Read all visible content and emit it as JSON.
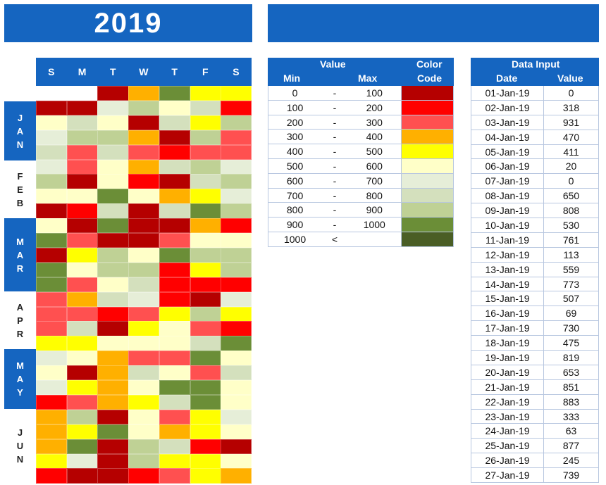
{
  "header": {
    "year": "2019"
  },
  "calendar": {
    "days": [
      "S",
      "M",
      "T",
      "W",
      "T",
      "F",
      "S"
    ],
    "months": [
      {
        "letters": [
          "J",
          "A",
          "N"
        ],
        "style": "blue"
      },
      {
        "letters": [
          "F",
          "E",
          "B"
        ],
        "style": "white"
      },
      {
        "letters": [
          "M",
          "A",
          "R"
        ],
        "style": "blue"
      },
      {
        "letters": [
          "A",
          "P",
          "R"
        ],
        "style": "white"
      },
      {
        "letters": [
          "M",
          "A",
          "Y"
        ],
        "style": "blue"
      },
      {
        "letters": [
          "J",
          "U",
          "N"
        ],
        "style": "white"
      }
    ],
    "palette": [
      "#FFFFFF",
      "#B50000",
      "#FF0000",
      "#FF5050",
      "#FFB000",
      "#FFFF00",
      "#FFFFC8",
      "#E6EED8",
      "#D4E0BD",
      "#BFD195",
      "#6B8E37",
      "#4A5E25"
    ],
    "rows": [
      [
        0,
        0,
        1,
        4,
        10,
        5,
        5
      ],
      [
        1,
        1,
        7,
        9,
        6,
        8,
        2
      ],
      [
        6,
        8,
        6,
        1,
        8,
        5,
        9
      ],
      [
        7,
        9,
        9,
        4,
        1,
        9,
        3
      ],
      [
        8,
        3,
        8,
        3,
        2,
        3,
        3
      ],
      [
        7,
        3,
        6,
        4,
        8,
        9,
        7
      ],
      [
        9,
        1,
        6,
        2,
        1,
        8,
        9
      ],
      [
        6,
        6,
        10,
        6,
        4,
        5,
        7
      ],
      [
        1,
        2,
        8,
        1,
        8,
        10,
        9
      ],
      [
        6,
        1,
        10,
        1,
        1,
        4,
        2
      ],
      [
        10,
        3,
        1,
        1,
        3,
        6,
        6
      ],
      [
        1,
        5,
        9,
        6,
        10,
        9,
        9
      ],
      [
        10,
        6,
        9,
        9,
        2,
        5,
        9
      ],
      [
        10,
        3,
        6,
        8,
        2,
        2,
        2
      ],
      [
        3,
        4,
        8,
        7,
        2,
        1,
        7
      ],
      [
        3,
        3,
        2,
        3,
        5,
        9,
        5
      ],
      [
        3,
        8,
        1,
        5,
        6,
        3,
        2
      ],
      [
        5,
        5,
        6,
        6,
        6,
        8,
        10
      ],
      [
        7,
        6,
        4,
        3,
        3,
        10,
        6
      ],
      [
        6,
        1,
        4,
        8,
        6,
        3,
        8
      ],
      [
        7,
        5,
        4,
        6,
        10,
        10,
        6
      ],
      [
        2,
        3,
        4,
        5,
        8,
        10,
        6
      ],
      [
        4,
        9,
        1,
        6,
        3,
        5,
        7
      ],
      [
        4,
        5,
        10,
        6,
        4,
        5,
        6
      ],
      [
        4,
        10,
        1,
        9,
        8,
        2,
        1
      ],
      [
        5,
        7,
        1,
        9,
        5,
        5,
        6
      ],
      [
        2,
        1,
        1,
        2,
        3,
        5,
        4
      ]
    ]
  },
  "legend": {
    "value_header": "Value",
    "min_header": "Min",
    "max_header": "Max",
    "color_header_1": "Color",
    "color_header_2": "Code",
    "rows": [
      {
        "min": "0",
        "sep": "-",
        "max": "100",
        "color": "#B50000"
      },
      {
        "min": "100",
        "sep": "-",
        "max": "200",
        "color": "#FF0000"
      },
      {
        "min": "200",
        "sep": "-",
        "max": "300",
        "color": "#FF5050"
      },
      {
        "min": "300",
        "sep": "-",
        "max": "400",
        "color": "#FFB000"
      },
      {
        "min": "400",
        "sep": "-",
        "max": "500",
        "color": "#FFFF00"
      },
      {
        "min": "500",
        "sep": "-",
        "max": "600",
        "color": "#FFFFC8"
      },
      {
        "min": "600",
        "sep": "-",
        "max": "700",
        "color": "#E6EED8"
      },
      {
        "min": "700",
        "sep": "-",
        "max": "800",
        "color": "#D4E0BD"
      },
      {
        "min": "800",
        "sep": "-",
        "max": "900",
        "color": "#BFD195"
      },
      {
        "min": "900",
        "sep": "-",
        "max": "1000",
        "color": "#6B8E37"
      },
      {
        "min": "1000",
        "sep": "<",
        "max": "",
        "color": "#4A5E25"
      }
    ]
  },
  "data_input": {
    "title": "Data Input",
    "date_header": "Date",
    "value_header": "Value",
    "rows": [
      {
        "date": "01-Jan-19",
        "value": "0"
      },
      {
        "date": "02-Jan-19",
        "value": "318"
      },
      {
        "date": "03-Jan-19",
        "value": "931"
      },
      {
        "date": "04-Jan-19",
        "value": "470"
      },
      {
        "date": "05-Jan-19",
        "value": "411"
      },
      {
        "date": "06-Jan-19",
        "value": "20"
      },
      {
        "date": "07-Jan-19",
        "value": "0"
      },
      {
        "date": "08-Jan-19",
        "value": "650"
      },
      {
        "date": "09-Jan-19",
        "value": "808"
      },
      {
        "date": "10-Jan-19",
        "value": "530"
      },
      {
        "date": "11-Jan-19",
        "value": "761"
      },
      {
        "date": "12-Jan-19",
        "value": "113"
      },
      {
        "date": "13-Jan-19",
        "value": "559"
      },
      {
        "date": "14-Jan-19",
        "value": "773"
      },
      {
        "date": "15-Jan-19",
        "value": "507"
      },
      {
        "date": "16-Jan-19",
        "value": "69"
      },
      {
        "date": "17-Jan-19",
        "value": "730"
      },
      {
        "date": "18-Jan-19",
        "value": "475"
      },
      {
        "date": "19-Jan-19",
        "value": "819"
      },
      {
        "date": "20-Jan-19",
        "value": "653"
      },
      {
        "date": "21-Jan-19",
        "value": "851"
      },
      {
        "date": "22-Jan-19",
        "value": "883"
      },
      {
        "date": "23-Jan-19",
        "value": "333"
      },
      {
        "date": "24-Jan-19",
        "value": "63"
      },
      {
        "date": "25-Jan-19",
        "value": "877"
      },
      {
        "date": "26-Jan-19",
        "value": "245"
      },
      {
        "date": "27-Jan-19",
        "value": "739"
      }
    ]
  }
}
